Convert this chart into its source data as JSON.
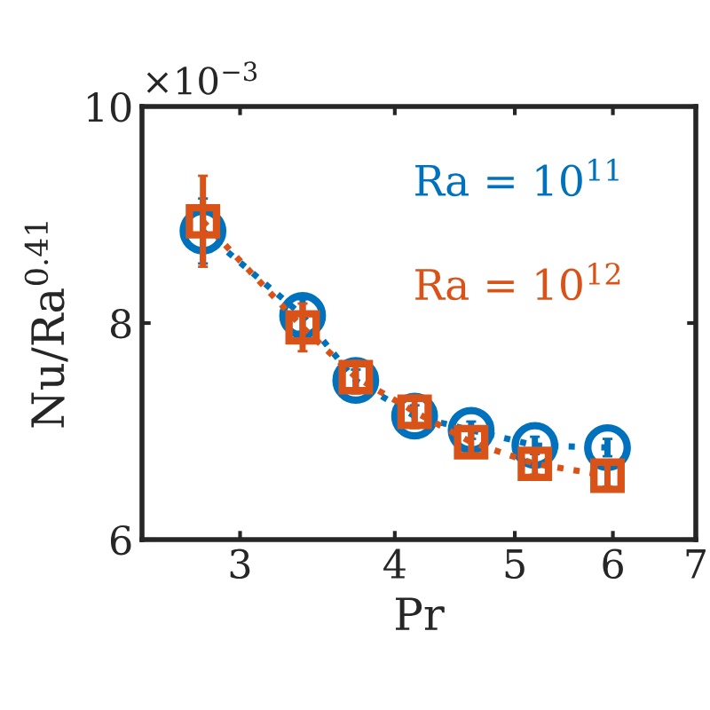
{
  "chart_data": {
    "type": "line",
    "xlabel": "Pr",
    "ylabel": "Nu/Ra$^{0.41}$",
    "annotations": [
      "×10$^{−3}$"
    ],
    "log": "x",
    "xlim": [
      2.5,
      7
    ],
    "xticks": [
      3,
      4,
      5,
      6,
      7
    ],
    "ylim": [
      6,
      10
    ],
    "yticks": [
      6,
      8,
      10
    ],
    "grid": false,
    "legend": false,
    "line_style": "dotted",
    "x": [
      2.8,
      3.37,
      3.72,
      4.15,
      4.61,
      5.19,
      5.94
    ],
    "series": [
      {
        "name": "Ra = 10$^{11}$",
        "color": "#0072bd",
        "marker": "circle",
        "values": [
          8.85,
          8.07,
          7.47,
          7.14,
          7.01,
          6.87,
          6.85
        ],
        "errors": [
          0.3,
          0.15,
          0.1,
          0.1,
          0.08,
          0.08,
          0.08
        ]
      },
      {
        "name": "Ra = 10$^{12}$",
        "color": "#d95319",
        "marker": "square",
        "values": [
          8.94,
          7.96,
          7.5,
          7.18,
          6.9,
          6.7,
          6.59
        ],
        "errors": [
          0.42,
          0.22,
          0.15,
          0.15,
          0.12,
          0.1,
          0.1
        ]
      }
    ]
  }
}
